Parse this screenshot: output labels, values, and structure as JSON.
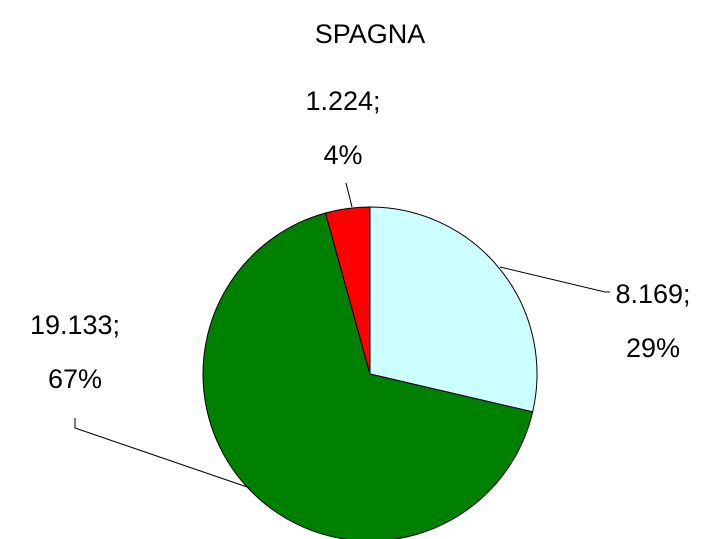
{
  "chart_data": {
    "type": "pie",
    "title": "SPAGNA",
    "values": [
      8169,
      19133,
      1224
    ],
    "value_labels": [
      [
        "8.169;",
        "29%"
      ],
      [
        "19.133;",
        "67%"
      ],
      [
        "1.224;",
        "4%"
      ]
    ],
    "colors": [
      "#ccffff",
      "#008000",
      "#ff0000"
    ]
  }
}
